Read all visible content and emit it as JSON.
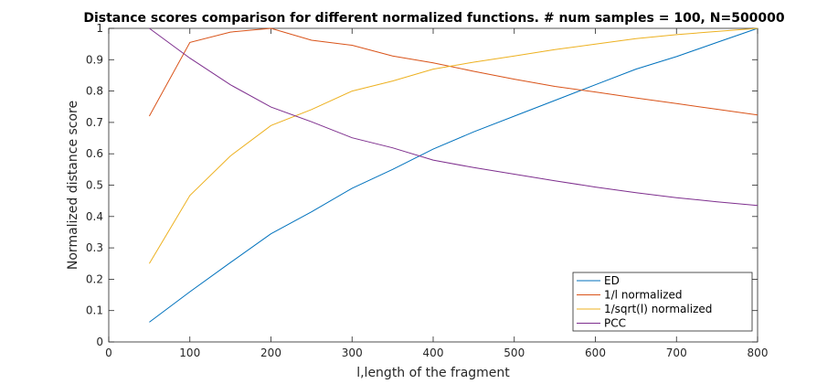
{
  "chart_data": {
    "type": "line",
    "title": "Distance scores comparison for different normalized functions. # num samples = 100, N=500000",
    "xlabel": "l,length of the fragment",
    "ylabel": "Normalized distance score",
    "xlim": [
      0,
      800
    ],
    "ylim": [
      0,
      1
    ],
    "xticks": [
      0,
      100,
      200,
      300,
      400,
      500,
      600,
      700,
      800
    ],
    "yticks": [
      0,
      0.1,
      0.2,
      0.3,
      0.4,
      0.5,
      0.6,
      0.7,
      0.8,
      0.9,
      1
    ],
    "ytick_labels": [
      "0",
      "0.1",
      "0.2",
      "0.3",
      "0.4",
      "0.5",
      "0.6",
      "0.7",
      "0.8",
      "0.9",
      "1"
    ],
    "grid": false,
    "legend_position": "bottom-right",
    "x": [
      50,
      100,
      150,
      200,
      250,
      300,
      350,
      400,
      450,
      500,
      550,
      600,
      650,
      700,
      750,
      800
    ],
    "series": [
      {
        "name": "ED",
        "color": "#0072bd",
        "values": [
          0.063,
          0.16,
          0.253,
          0.345,
          0.415,
          0.49,
          0.55,
          0.615,
          0.67,
          0.72,
          0.77,
          0.82,
          0.87,
          0.91,
          0.955,
          1.0
        ]
      },
      {
        "name": "1/l normalized",
        "color": "#d95319",
        "values": [
          0.72,
          0.955,
          0.988,
          1.0,
          0.962,
          0.946,
          0.912,
          0.89,
          0.863,
          0.838,
          0.815,
          0.797,
          0.778,
          0.76,
          0.742,
          0.724
        ]
      },
      {
        "name": "1/sqrt(l) normalized",
        "color": "#edb120",
        "values": [
          0.25,
          0.467,
          0.593,
          0.69,
          0.741,
          0.8,
          0.832,
          0.87,
          0.892,
          0.912,
          0.932,
          0.95,
          0.967,
          0.98,
          0.99,
          1.0
        ]
      },
      {
        "name": "PCC",
        "color": "#7e2f8e",
        "values": [
          1.0,
          0.905,
          0.82,
          0.749,
          0.702,
          0.651,
          0.619,
          0.58,
          0.556,
          0.535,
          0.514,
          0.494,
          0.476,
          0.46,
          0.447,
          0.435
        ]
      }
    ]
  }
}
